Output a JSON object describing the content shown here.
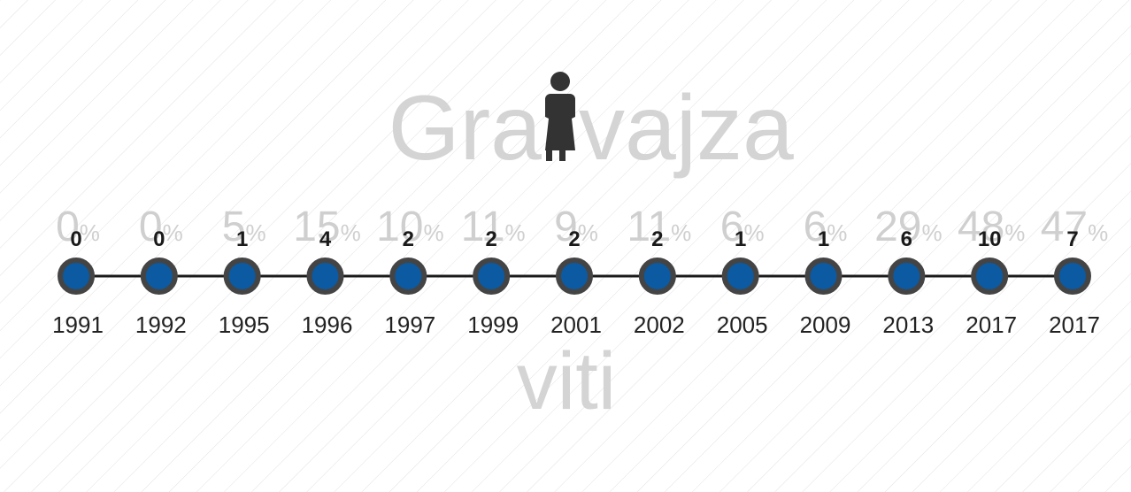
{
  "title": {
    "left": "Gra",
    "right": "vajza"
  },
  "axis_label": "viti",
  "percent_unit": "%",
  "timeline": {
    "items": [
      {
        "year": "1991",
        "count": "0",
        "percent": "0"
      },
      {
        "year": "1992",
        "count": "0",
        "percent": "0"
      },
      {
        "year": "1995",
        "count": "1",
        "percent": "5"
      },
      {
        "year": "1996",
        "count": "4",
        "percent": "15"
      },
      {
        "year": "1997",
        "count": "2",
        "percent": "10"
      },
      {
        "year": "1999",
        "count": "2",
        "percent": "11"
      },
      {
        "year": "2001",
        "count": "2",
        "percent": "9"
      },
      {
        "year": "2002",
        "count": "2",
        "percent": "11"
      },
      {
        "year": "2005",
        "count": "1",
        "percent": "6"
      },
      {
        "year": "2009",
        "count": "1",
        "percent": "6"
      },
      {
        "year": "2013",
        "count": "6",
        "percent": "29"
      },
      {
        "year": "2017",
        "count": "10",
        "percent": "48"
      },
      {
        "year": "2017",
        "count": "7",
        "percent": "47"
      }
    ]
  }
}
